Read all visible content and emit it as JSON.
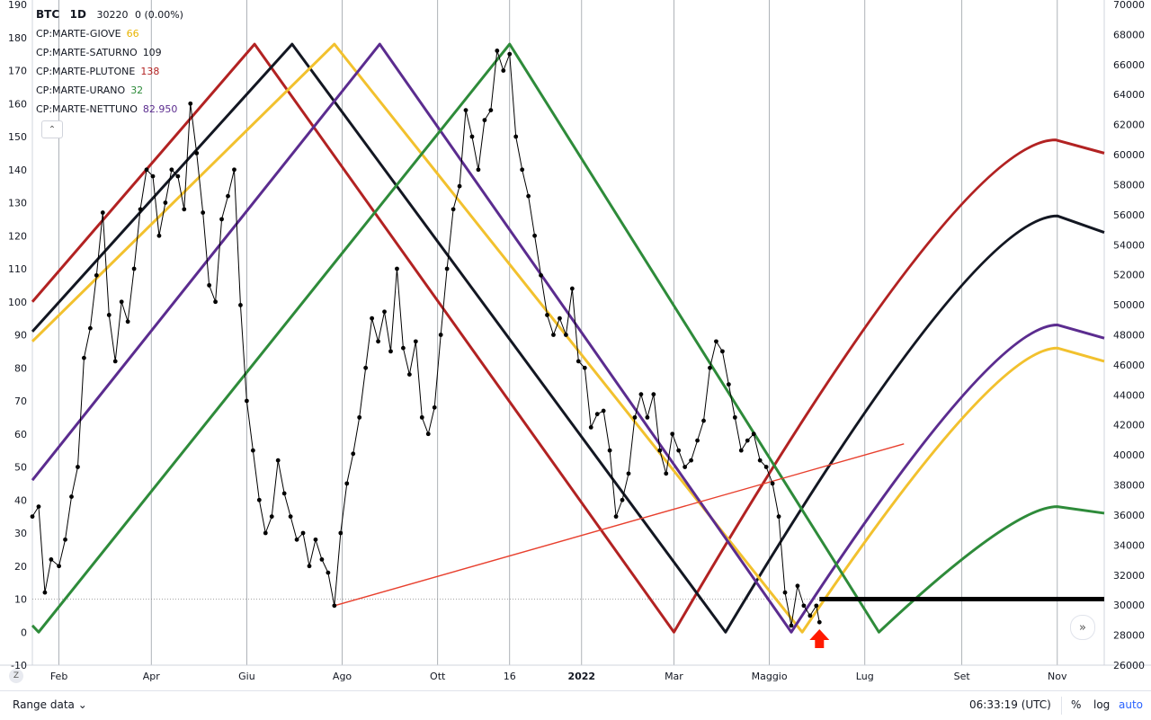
{
  "legend": {
    "symbol": "BTC",
    "interval": "1D",
    "price": "30220",
    "change": "0 (0.00%)",
    "indicators": [
      {
        "label": "CP:MARTE-GIOVE",
        "value": "66",
        "color": "#e8b400"
      },
      {
        "label": "CP:MARTE-SATURNO",
        "value": "109",
        "color": "#131722"
      },
      {
        "label": "CP:MARTE-PLUTONE",
        "value": "138",
        "color": "#b22222"
      },
      {
        "label": "CP:MARTE-URANO",
        "value": "32",
        "color": "#2e8b3a"
      },
      {
        "label": "CP:MARTE-NETTUNO",
        "value": "82.950",
        "color": "#5b2c8f"
      }
    ]
  },
  "bottom_bar": {
    "range_label": "Range data",
    "time": "06:33:19 (UTC)",
    "percent": "%",
    "log": "log",
    "auto": "auto"
  },
  "chart_data": {
    "type": "line",
    "left_axis": {
      "ticks": [
        -10,
        0,
        10,
        20,
        30,
        40,
        50,
        60,
        70,
        80,
        90,
        100,
        110,
        120,
        130,
        140,
        150,
        160,
        170,
        180,
        190
      ],
      "range": [
        -10,
        190
      ]
    },
    "right_axis": {
      "ticks": [
        26000,
        28000,
        30000,
        32000,
        34000,
        36000,
        38000,
        40000,
        42000,
        44000,
        46000,
        48000,
        50000,
        52000,
        54000,
        56000,
        58000,
        60000,
        62000,
        64000,
        66000,
        68000,
        70000
      ],
      "range": [
        26000,
        70000
      ]
    },
    "x_axis": {
      "range": [
        "2021-01-15",
        "2022-12-01"
      ],
      "ticks": [
        {
          "date": "2021-02-01",
          "label": "Feb",
          "bold": false
        },
        {
          "date": "2021-04-01",
          "label": "Apr",
          "bold": false
        },
        {
          "date": "2021-06-01",
          "label": "Giu",
          "bold": false
        },
        {
          "date": "2021-08-01",
          "label": "Ago",
          "bold": false
        },
        {
          "date": "2021-10-01",
          "label": "Ott",
          "bold": false
        },
        {
          "date": "2021-11-16",
          "label": "16",
          "bold": false
        },
        {
          "date": "2022-01-01",
          "label": "2022",
          "bold": true
        },
        {
          "date": "2022-03-01",
          "label": "Mar",
          "bold": false
        },
        {
          "date": "2022-05-01",
          "label": "Maggio",
          "bold": false
        },
        {
          "date": "2022-07-01",
          "label": "Lug",
          "bold": false
        },
        {
          "date": "2022-09-01",
          "label": "Set",
          "bold": false
        },
        {
          "date": "2022-11-01",
          "label": "Nov",
          "bold": false
        }
      ]
    },
    "series": [
      {
        "color": "#b22222",
        "points": [
          [
            "2021-01-15",
            100
          ],
          [
            "2021-06-06",
            178
          ],
          [
            "2022-03-01",
            0
          ],
          [
            "2022-10-31",
            149
          ],
          [
            "2022-12-01",
            145
          ]
        ]
      },
      {
        "color": "#131722",
        "points": [
          [
            "2021-01-15",
            91
          ],
          [
            "2021-06-30",
            178
          ],
          [
            "2022-04-03",
            0
          ],
          [
            "2022-11-01",
            126
          ],
          [
            "2022-12-01",
            121
          ]
        ]
      },
      {
        "color": "#f2c12e",
        "points": [
          [
            "2021-01-15",
            88
          ],
          [
            "2021-07-27",
            178
          ],
          [
            "2022-05-22",
            0
          ],
          [
            "2022-11-01",
            86
          ],
          [
            "2022-12-01",
            82
          ]
        ]
      },
      {
        "color": "#5b2c8f",
        "points": [
          [
            "2021-01-15",
            46
          ],
          [
            "2021-08-25",
            178
          ],
          [
            "2022-05-15",
            0
          ],
          [
            "2022-11-01",
            93
          ],
          [
            "2022-12-01",
            89
          ]
        ]
      },
      {
        "color": "#2e8b3a",
        "points": [
          [
            "2021-01-15",
            2
          ],
          [
            "2021-01-19",
            0
          ],
          [
            "2021-11-16",
            178
          ],
          [
            "2022-07-10",
            0
          ],
          [
            "2022-11-01",
            38
          ],
          [
            "2022-12-01",
            36
          ]
        ]
      }
    ],
    "price_points": [
      [
        "2021-01-15",
        35
      ],
      [
        "2021-01-19",
        38
      ],
      [
        "2021-01-23",
        12
      ],
      [
        "2021-01-27",
        22
      ],
      [
        "2021-02-01",
        20
      ],
      [
        "2021-02-05",
        28
      ],
      [
        "2021-02-09",
        41
      ],
      [
        "2021-02-13",
        50
      ],
      [
        "2021-02-17",
        83
      ],
      [
        "2021-02-21",
        92
      ],
      [
        "2021-02-25",
        108
      ],
      [
        "2021-03-01",
        127
      ],
      [
        "2021-03-05",
        96
      ],
      [
        "2021-03-09",
        82
      ],
      [
        "2021-03-13",
        100
      ],
      [
        "2021-03-17",
        94
      ],
      [
        "2021-03-21",
        110
      ],
      [
        "2021-03-25",
        128
      ],
      [
        "2021-03-29",
        140
      ],
      [
        "2021-04-02",
        138
      ],
      [
        "2021-04-06",
        120
      ],
      [
        "2021-04-10",
        130
      ],
      [
        "2021-04-14",
        140
      ],
      [
        "2021-04-18",
        138
      ],
      [
        "2021-04-22",
        128
      ],
      [
        "2021-04-26",
        160
      ],
      [
        "2021-04-30",
        145
      ],
      [
        "2021-05-04",
        127
      ],
      [
        "2021-05-08",
        105
      ],
      [
        "2021-05-12",
        100
      ],
      [
        "2021-05-16",
        125
      ],
      [
        "2021-05-20",
        132
      ],
      [
        "2021-05-24",
        140
      ],
      [
        "2021-05-28",
        99
      ],
      [
        "2021-06-01",
        70
      ],
      [
        "2021-06-05",
        55
      ],
      [
        "2021-06-09",
        40
      ],
      [
        "2021-06-13",
        30
      ],
      [
        "2021-06-17",
        35
      ],
      [
        "2021-06-21",
        52
      ],
      [
        "2021-06-25",
        42
      ],
      [
        "2021-06-29",
        35
      ],
      [
        "2021-07-03",
        28
      ],
      [
        "2021-07-07",
        30
      ],
      [
        "2021-07-11",
        20
      ],
      [
        "2021-07-15",
        28
      ],
      [
        "2021-07-19",
        22
      ],
      [
        "2021-07-23",
        18
      ],
      [
        "2021-07-27",
        8
      ],
      [
        "2021-07-31",
        30
      ],
      [
        "2021-08-04",
        45
      ],
      [
        "2021-08-08",
        54
      ],
      [
        "2021-08-12",
        65
      ],
      [
        "2021-08-16",
        80
      ],
      [
        "2021-08-20",
        95
      ],
      [
        "2021-08-24",
        88
      ],
      [
        "2021-08-28",
        97
      ],
      [
        "2021-09-01",
        85
      ],
      [
        "2021-09-05",
        110
      ],
      [
        "2021-09-09",
        86
      ],
      [
        "2021-09-13",
        78
      ],
      [
        "2021-09-17",
        88
      ],
      [
        "2021-09-21",
        65
      ],
      [
        "2021-09-25",
        60
      ],
      [
        "2021-09-29",
        68
      ],
      [
        "2021-10-03",
        90
      ],
      [
        "2021-10-07",
        110
      ],
      [
        "2021-10-11",
        128
      ],
      [
        "2021-10-15",
        135
      ],
      [
        "2021-10-19",
        158
      ],
      [
        "2021-10-23",
        150
      ],
      [
        "2021-10-27",
        140
      ],
      [
        "2021-10-31",
        155
      ],
      [
        "2021-11-04",
        158
      ],
      [
        "2021-11-08",
        176
      ],
      [
        "2021-11-12",
        170
      ],
      [
        "2021-11-16",
        175
      ],
      [
        "2021-11-20",
        150
      ],
      [
        "2021-11-24",
        140
      ],
      [
        "2021-11-28",
        132
      ],
      [
        "2021-12-02",
        120
      ],
      [
        "2021-12-06",
        108
      ],
      [
        "2021-12-10",
        96
      ],
      [
        "2021-12-14",
        90
      ],
      [
        "2021-12-18",
        95
      ],
      [
        "2021-12-22",
        90
      ],
      [
        "2021-12-26",
        104
      ],
      [
        "2021-12-30",
        82
      ],
      [
        "2022-01-03",
        80
      ],
      [
        "2022-01-07",
        62
      ],
      [
        "2022-01-11",
        66
      ],
      [
        "2022-01-15",
        67
      ],
      [
        "2022-01-19",
        55
      ],
      [
        "2022-01-23",
        35
      ],
      [
        "2022-01-27",
        40
      ],
      [
        "2022-01-31",
        48
      ],
      [
        "2022-02-04",
        65
      ],
      [
        "2022-02-08",
        72
      ],
      [
        "2022-02-12",
        65
      ],
      [
        "2022-02-16",
        72
      ],
      [
        "2022-02-20",
        55
      ],
      [
        "2022-02-24",
        48
      ],
      [
        "2022-02-28",
        60
      ],
      [
        "2022-03-04",
        55
      ],
      [
        "2022-03-08",
        50
      ],
      [
        "2022-03-12",
        52
      ],
      [
        "2022-03-16",
        58
      ],
      [
        "2022-03-20",
        64
      ],
      [
        "2022-03-24",
        80
      ],
      [
        "2022-03-28",
        88
      ],
      [
        "2022-04-01",
        85
      ],
      [
        "2022-04-05",
        75
      ],
      [
        "2022-04-09",
        65
      ],
      [
        "2022-04-13",
        55
      ],
      [
        "2022-04-17",
        58
      ],
      [
        "2022-04-21",
        60
      ],
      [
        "2022-04-25",
        52
      ],
      [
        "2022-04-29",
        50
      ],
      [
        "2022-05-03",
        45
      ],
      [
        "2022-05-07",
        35
      ],
      [
        "2022-05-11",
        12
      ],
      [
        "2022-05-15",
        2
      ],
      [
        "2022-05-19",
        14
      ],
      [
        "2022-05-23",
        8
      ],
      [
        "2022-05-27",
        5
      ],
      [
        "2022-05-31",
        8
      ],
      [
        "2022-06-02",
        3
      ]
    ],
    "trendline": {
      "color": "#e8402e",
      "points": [
        [
          "2021-07-27",
          8
        ],
        [
          "2022-07-26",
          57
        ]
      ]
    },
    "flat_line": {
      "color": "#000000",
      "points": [
        [
          "2022-06-02",
          10
        ],
        [
          "2022-12-01",
          10
        ]
      ]
    },
    "dotted_level": 10,
    "arrow_date": "2022-06-02"
  }
}
